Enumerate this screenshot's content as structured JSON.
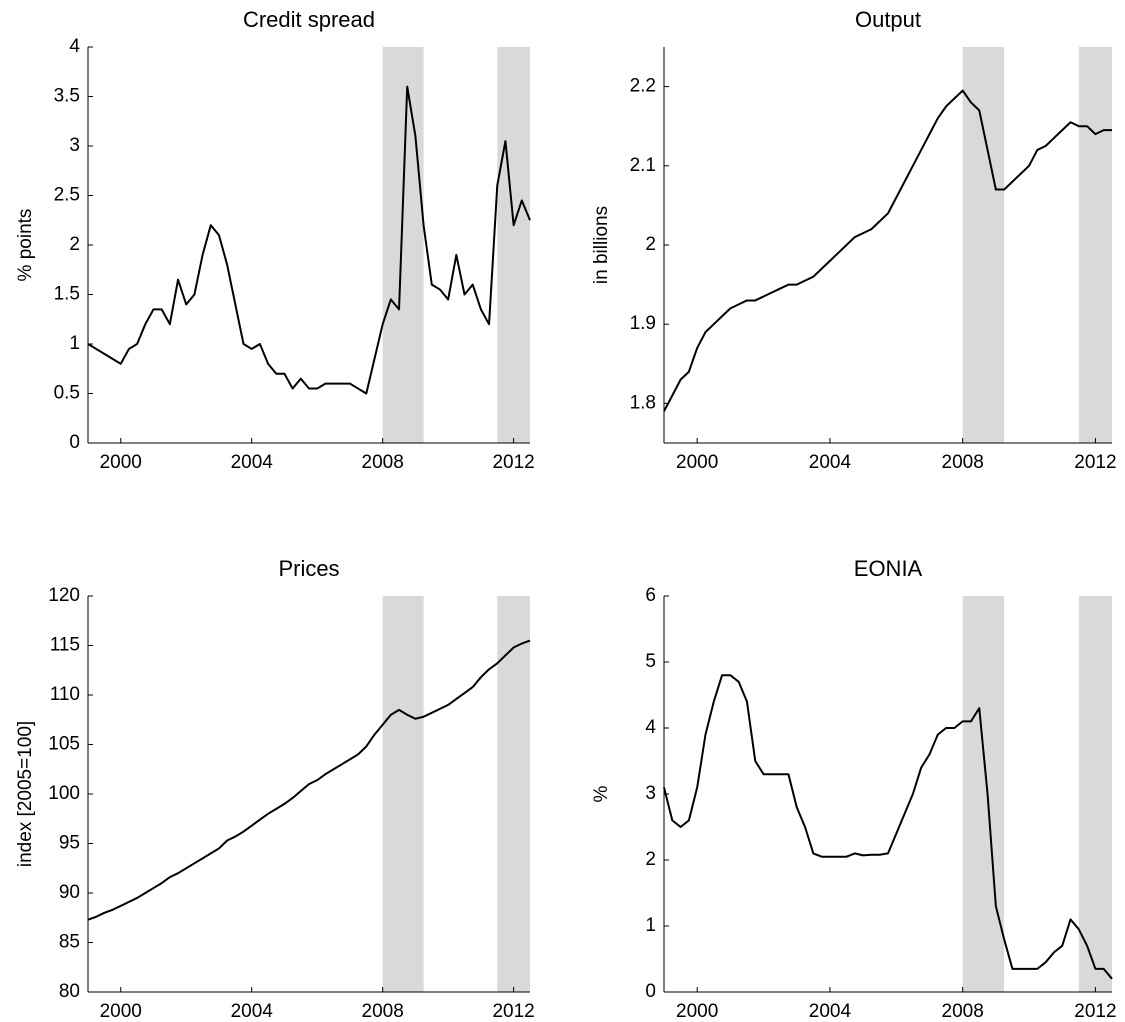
{
  "chart_data": [
    {
      "type": "line",
      "title": "Credit spread",
      "ylabel": "% points",
      "color": "#000000",
      "band_color": "#d9d9d9",
      "x": [
        1999,
        1999.25,
        1999.5,
        1999.75,
        2000,
        2000.25,
        2000.5,
        2000.75,
        2001,
        2001.25,
        2001.5,
        2001.75,
        2002,
        2002.25,
        2002.5,
        2002.75,
        2003,
        2003.25,
        2003.5,
        2003.75,
        2004,
        2004.25,
        2004.5,
        2004.75,
        2005,
        2005.25,
        2005.5,
        2005.75,
        2006,
        2006.25,
        2006.5,
        2006.75,
        2007,
        2007.25,
        2007.5,
        2007.75,
        2008,
        2008.25,
        2008.5,
        2008.75,
        2009,
        2009.25,
        2009.5,
        2009.75,
        2010,
        2010.25,
        2010.5,
        2010.75,
        2011,
        2011.25,
        2011.5,
        2011.75,
        2012,
        2012.25,
        2012.5
      ],
      "values": [
        1.0,
        0.95,
        0.9,
        0.85,
        0.8,
        0.95,
        1.0,
        1.2,
        1.35,
        1.35,
        1.2,
        1.65,
        1.4,
        1.5,
        1.9,
        2.2,
        2.1,
        1.8,
        1.4,
        1.0,
        0.95,
        1.0,
        0.8,
        0.7,
        0.7,
        0.55,
        0.65,
        0.55,
        0.55,
        0.6,
        0.6,
        0.6,
        0.6,
        0.55,
        0.5,
        0.85,
        1.2,
        1.45,
        1.35,
        3.6,
        3.1,
        2.2,
        1.6,
        1.55,
        1.45,
        1.9,
        1.5,
        1.6,
        1.35,
        1.2,
        2.6,
        3.05,
        2.2,
        2.45,
        2.25
      ],
      "bands": [
        [
          2008,
          2009.25
        ],
        [
          2011.5,
          2012.5
        ]
      ],
      "xlim": [
        1999,
        2012.5
      ],
      "xticks": [
        2000,
        2004,
        2008,
        2012
      ],
      "ylim": [
        0,
        4
      ],
      "yticks": [
        0,
        0.5,
        1,
        1.5,
        2,
        2.5,
        3,
        3.5,
        4
      ]
    },
    {
      "type": "line",
      "title": "Output",
      "ylabel": "in billions",
      "color": "#000000",
      "band_color": "#d9d9d9",
      "x": [
        1999,
        1999.25,
        1999.5,
        1999.75,
        2000,
        2000.25,
        2000.5,
        2000.75,
        2001,
        2001.25,
        2001.5,
        2001.75,
        2002,
        2002.25,
        2002.5,
        2002.75,
        2003,
        2003.25,
        2003.5,
        2003.75,
        2004,
        2004.25,
        2004.5,
        2004.75,
        2005,
        2005.25,
        2005.5,
        2005.75,
        2006,
        2006.25,
        2006.5,
        2006.75,
        2007,
        2007.25,
        2007.5,
        2007.75,
        2008,
        2008.25,
        2008.5,
        2008.75,
        2009,
        2009.25,
        2009.5,
        2009.75,
        2010,
        2010.25,
        2010.5,
        2010.75,
        2011,
        2011.25,
        2011.5,
        2011.75,
        2012,
        2012.25,
        2012.5
      ],
      "values": [
        1.79,
        1.81,
        1.83,
        1.84,
        1.87,
        1.89,
        1.9,
        1.91,
        1.92,
        1.925,
        1.93,
        1.93,
        1.935,
        1.94,
        1.945,
        1.95,
        1.95,
        1.955,
        1.96,
        1.97,
        1.98,
        1.99,
        2.0,
        2.01,
        2.015,
        2.02,
        2.03,
        2.04,
        2.06,
        2.08,
        2.1,
        2.12,
        2.14,
        2.16,
        2.175,
        2.185,
        2.195,
        2.18,
        2.17,
        2.12,
        2.07,
        2.07,
        2.08,
        2.09,
        2.1,
        2.12,
        2.125,
        2.135,
        2.145,
        2.155,
        2.15,
        2.15,
        2.14,
        2.145,
        2.145
      ],
      "bands": [
        [
          2008,
          2009.25
        ],
        [
          2011.5,
          2012.5
        ]
      ],
      "xlim": [
        1999,
        2012.5
      ],
      "xticks": [
        2000,
        2004,
        2008,
        2012
      ],
      "ylim": [
        1.75,
        2.25
      ],
      "yticks": [
        1.8,
        1.9,
        2,
        2.1,
        2.2
      ]
    },
    {
      "type": "line",
      "title": "Prices",
      "ylabel": "index [2005=100]",
      "color": "#000000",
      "band_color": "#d9d9d9",
      "x": [
        1999,
        1999.25,
        1999.5,
        1999.75,
        2000,
        2000.25,
        2000.5,
        2000.75,
        2001,
        2001.25,
        2001.5,
        2001.75,
        2002,
        2002.25,
        2002.5,
        2002.75,
        2003,
        2003.25,
        2003.5,
        2003.75,
        2004,
        2004.25,
        2004.5,
        2004.75,
        2005,
        2005.25,
        2005.5,
        2005.75,
        2006,
        2006.25,
        2006.5,
        2006.75,
        2007,
        2007.25,
        2007.5,
        2007.75,
        2008,
        2008.25,
        2008.5,
        2008.75,
        2009,
        2009.25,
        2009.5,
        2009.75,
        2010,
        2010.25,
        2010.5,
        2010.75,
        2011,
        2011.25,
        2011.5,
        2011.75,
        2012,
        2012.25,
        2012.5
      ],
      "values": [
        87.3,
        87.6,
        88.0,
        88.3,
        88.7,
        89.1,
        89.5,
        90.0,
        90.5,
        91.0,
        91.6,
        92.0,
        92.5,
        93.0,
        93.5,
        94.0,
        94.5,
        95.3,
        95.7,
        96.2,
        96.8,
        97.4,
        98.0,
        98.5,
        99.0,
        99.6,
        100.3,
        101.0,
        101.4,
        102.0,
        102.5,
        103.0,
        103.5,
        104.0,
        104.8,
        106.0,
        107.0,
        108.0,
        108.5,
        108.0,
        107.6,
        107.8,
        108.2,
        108.6,
        109.0,
        109.6,
        110.2,
        110.8,
        111.8,
        112.6,
        113.2,
        114.0,
        114.8,
        115.2,
        115.5
      ],
      "bands": [
        [
          2008,
          2009.25
        ],
        [
          2011.5,
          2012.5
        ]
      ],
      "xlim": [
        1999,
        2012.5
      ],
      "xticks": [
        2000,
        2004,
        2008,
        2012
      ],
      "ylim": [
        80,
        120
      ],
      "yticks": [
        80,
        85,
        90,
        95,
        100,
        105,
        110,
        115,
        120
      ]
    },
    {
      "type": "line",
      "title": "EONIA",
      "ylabel": "%",
      "color": "#000000",
      "band_color": "#d9d9d9",
      "x": [
        1999,
        1999.25,
        1999.5,
        1999.75,
        2000,
        2000.25,
        2000.5,
        2000.75,
        2001,
        2001.25,
        2001.5,
        2001.75,
        2002,
        2002.25,
        2002.5,
        2002.75,
        2003,
        2003.25,
        2003.5,
        2003.75,
        2004,
        2004.25,
        2004.5,
        2004.75,
        2005,
        2005.25,
        2005.5,
        2005.75,
        2006,
        2006.25,
        2006.5,
        2006.75,
        2007,
        2007.25,
        2007.5,
        2007.75,
        2008,
        2008.25,
        2008.5,
        2008.75,
        2009,
        2009.25,
        2009.5,
        2009.75,
        2010,
        2010.25,
        2010.5,
        2010.75,
        2011,
        2011.25,
        2011.5,
        2011.75,
        2012,
        2012.25,
        2012.5
      ],
      "values": [
        3.1,
        2.6,
        2.5,
        2.6,
        3.1,
        3.9,
        4.4,
        4.8,
        4.8,
        4.7,
        4.4,
        3.5,
        3.3,
        3.3,
        3.3,
        3.3,
        2.8,
        2.5,
        2.1,
        2.05,
        2.05,
        2.05,
        2.05,
        2.1,
        2.07,
        2.08,
        2.08,
        2.1,
        2.4,
        2.7,
        3.0,
        3.4,
        3.6,
        3.9,
        4.0,
        4.0,
        4.1,
        4.1,
        4.3,
        3.0,
        1.3,
        0.8,
        0.35,
        0.35,
        0.35,
        0.35,
        0.45,
        0.6,
        0.7,
        1.1,
        0.95,
        0.7,
        0.35,
        0.35,
        0.2
      ],
      "bands": [
        [
          2008,
          2009.25
        ],
        [
          2011.5,
          2012.5
        ]
      ],
      "xlim": [
        1999,
        2012.5
      ],
      "xticks": [
        2000,
        2004,
        2008,
        2012
      ],
      "ylim": [
        0,
        6
      ],
      "yticks": [
        0,
        1,
        2,
        3,
        4,
        5,
        6
      ]
    }
  ]
}
